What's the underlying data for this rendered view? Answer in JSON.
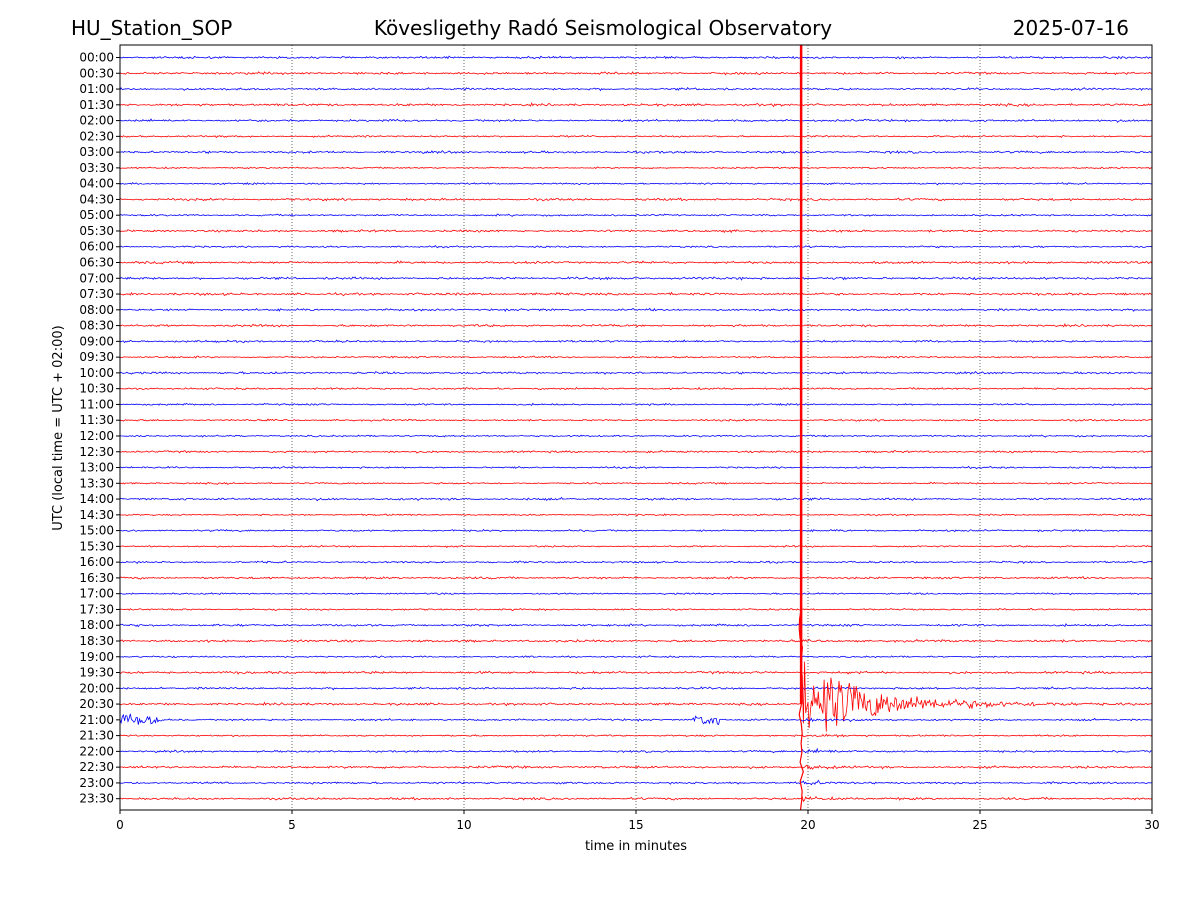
{
  "header": {
    "station": "HU_Station_SOP",
    "title": "Kövesligethy Radó Seismological Observatory",
    "date": "2025-07-16"
  },
  "chart_data": {
    "type": "line",
    "subtype": "helicorder",
    "xlabel": "time in minutes",
    "ylabel": "UTC (local time = UTC + 02:00)",
    "xlim": [
      0,
      30
    ],
    "xticks": [
      "0",
      "5",
      "10",
      "15",
      "20",
      "25",
      "30"
    ],
    "grid": "vertical dotted at each x tick",
    "row_labels": [
      "00:00",
      "00:30",
      "01:00",
      "01:30",
      "02:00",
      "02:30",
      "03:00",
      "03:30",
      "04:00",
      "04:30",
      "05:00",
      "05:30",
      "06:00",
      "06:30",
      "07:00",
      "07:30",
      "08:00",
      "08:30",
      "09:00",
      "09:30",
      "10:00",
      "10:30",
      "11:00",
      "11:30",
      "12:00",
      "12:30",
      "13:00",
      "13:30",
      "14:00",
      "14:30",
      "15:00",
      "15:30",
      "16:00",
      "16:30",
      "17:00",
      "17:30",
      "18:00",
      "18:30",
      "19:00",
      "19:30",
      "20:00",
      "20:30",
      "21:00",
      "21:30",
      "22:00",
      "22:30",
      "23:00",
      "23:30"
    ],
    "colors": {
      "even_rows": "#0000ff",
      "odd_rows": "#ff0000"
    },
    "event": {
      "start_minute": 19.8,
      "row_label": "20:30",
      "color": "#ff0000"
    },
    "extra_bursts": [
      {
        "row_label": "21:00",
        "start_minute": 0.0,
        "end_minute": 1.2
      },
      {
        "row_label": "21:00",
        "start_minute": 16.6,
        "end_minute": 17.4
      }
    ]
  }
}
